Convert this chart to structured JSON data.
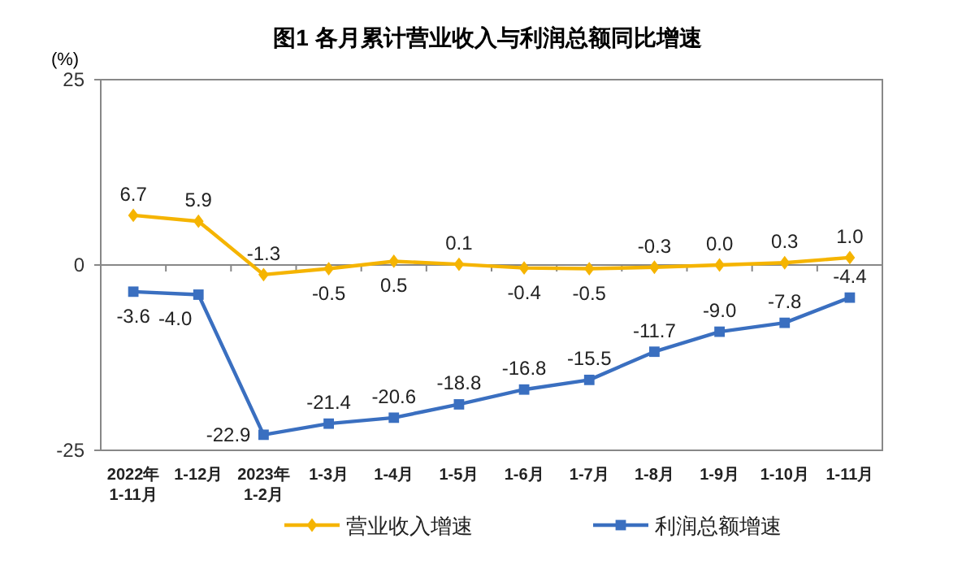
{
  "chart_data": {
    "type": "line",
    "title": "图1  各月累计营业收入与利润总额同比增速",
    "ylabel": "(%)",
    "categories": [
      "2022年\n1-11月",
      "1-12月",
      "2023年\n1-2月",
      "1-3月",
      "1-4月",
      "1-5月",
      "1-6月",
      "1-7月",
      "1-8月",
      "1-9月",
      "1-10月",
      "1-11月"
    ],
    "series": [
      {
        "name": "营业收入增速",
        "color": "#f5b400",
        "marker": "diamond",
        "values": [
          6.7,
          5.9,
          -1.3,
          -0.5,
          0.5,
          0.1,
          -0.4,
          -0.5,
          -0.3,
          0.0,
          0.3,
          1.0
        ],
        "value_labels": [
          "6.7",
          "5.9",
          "-1.3",
          "-0.5",
          "0.5",
          "0.1",
          "-0.4",
          "-0.5",
          "-0.3",
          "0.0",
          "0.3",
          "1.0"
        ]
      },
      {
        "name": "利润总额增速",
        "color": "#3a6fc0",
        "marker": "square",
        "values": [
          -3.6,
          -4.0,
          -22.9,
          -21.4,
          -20.6,
          -18.8,
          -16.8,
          -15.5,
          -11.7,
          -9.0,
          -7.8,
          -4.4
        ],
        "value_labels": [
          "-3.6",
          "-4.0",
          "-22.9",
          "-21.4",
          "-20.6",
          "-18.8",
          "-16.8",
          "-15.5",
          "-11.7",
          "-9.0",
          "-7.8",
          "-4.4"
        ]
      }
    ],
    "ref_lines": [
      {
        "axis": "y",
        "value": 0
      }
    ],
    "ylim": [
      -25,
      25
    ],
    "yticks": [
      -25,
      0,
      25
    ],
    "grid": false,
    "legend": "bottom",
    "line_style": "solid"
  }
}
